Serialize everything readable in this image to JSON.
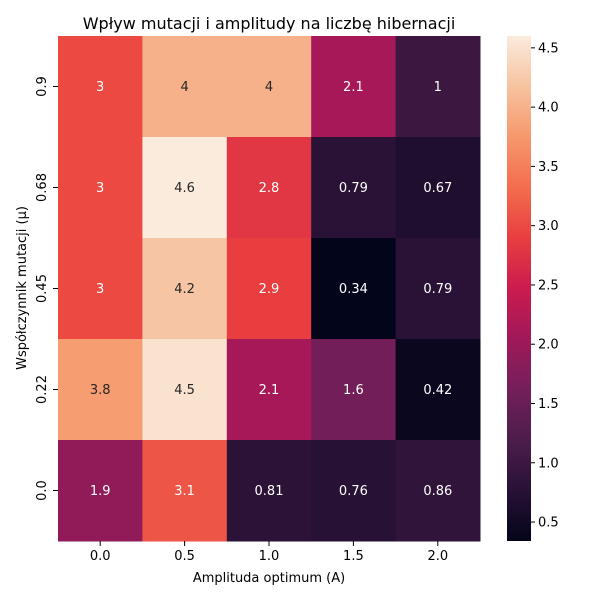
{
  "chart_data": {
    "type": "heatmap",
    "title": "Wpływ mutacji i amplitudy na liczbę hibernacji",
    "xlabel": "Amplituda optimum (A)",
    "ylabel": "Współczynnik mutacji (μ)",
    "x_categories": [
      "0.0",
      "0.5",
      "1.0",
      "1.5",
      "2.0"
    ],
    "y_categories": [
      "0.9",
      "0.68",
      "0.45",
      "0.22",
      "0.0"
    ],
    "values": [
      [
        3.0,
        4.0,
        4.0,
        2.1,
        1.0
      ],
      [
        3.0,
        4.6,
        2.8,
        0.79,
        0.67
      ],
      [
        3.0,
        4.2,
        2.9,
        0.34,
        0.79
      ],
      [
        3.8,
        4.5,
        2.1,
        1.6,
        0.42
      ],
      [
        1.9,
        3.1,
        0.81,
        0.76,
        0.86
      ]
    ],
    "labels": [
      [
        "3",
        "4",
        "4",
        "2.1",
        "1"
      ],
      [
        "3",
        "4.6",
        "2.8",
        "0.79",
        "0.67"
      ],
      [
        "3",
        "4.2",
        "2.9",
        "0.34",
        "0.79"
      ],
      [
        "3.8",
        "4.5",
        "2.1",
        "1.6",
        "0.42"
      ],
      [
        "1.9",
        "3.1",
        "0.81",
        "0.76",
        "0.86"
      ]
    ],
    "colorbar": {
      "colormap": "rocket",
      "range": [
        0.34,
        4.6
      ],
      "ticks": [
        "0.5",
        "1.0",
        "1.5",
        "2.0",
        "2.5",
        "3.0",
        "3.5",
        "4.0",
        "4.5"
      ]
    },
    "grid": false,
    "legend": "colorbar-right"
  }
}
